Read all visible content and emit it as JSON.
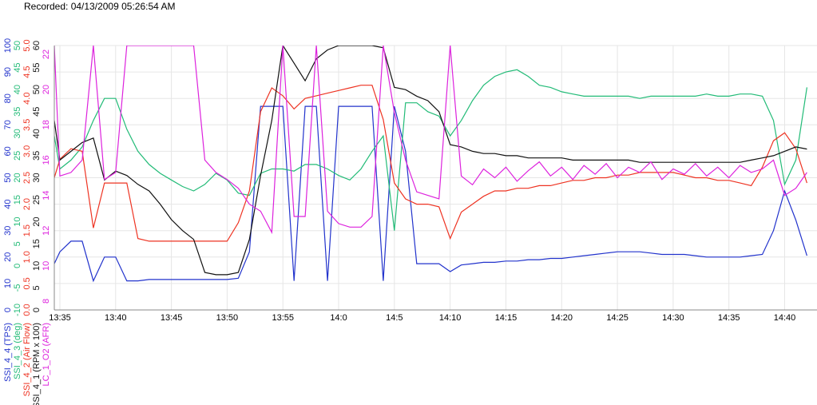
{
  "header": {
    "recorded": "Recorded: 04/13/2009 05:26:54 AM"
  },
  "chart_data": {
    "type": "line",
    "x": [
      814.5,
      815,
      816,
      817,
      818,
      819,
      820,
      821,
      822,
      823,
      824,
      825,
      826,
      827,
      828,
      829,
      830,
      831,
      832,
      833,
      834,
      835,
      836,
      837,
      838,
      839,
      840,
      841,
      842,
      843,
      844,
      845,
      846,
      847,
      848,
      849,
      850,
      851,
      852,
      853,
      854,
      855,
      856,
      857,
      858,
      859,
      860,
      861,
      862,
      863,
      864,
      865,
      866,
      867,
      868,
      869,
      870,
      871,
      872,
      873,
      874,
      875,
      876,
      877,
      878,
      879,
      880,
      881,
      882
    ],
    "xlim": [
      814.5,
      882.9
    ],
    "xticks": [
      {
        "value": 815,
        "label": "13:35"
      },
      {
        "value": 820,
        "label": "13:40"
      },
      {
        "value": 825,
        "label": "13:45"
      },
      {
        "value": 830,
        "label": "13:50"
      },
      {
        "value": 835,
        "label": "13:55"
      },
      {
        "value": 840,
        "label": "14:0"
      },
      {
        "value": 845,
        "label": "14:5"
      },
      {
        "value": 850,
        "label": "14:10"
      },
      {
        "value": 855,
        "label": "14:15"
      },
      {
        "value": 860,
        "label": "14:20"
      },
      {
        "value": 865,
        "label": "14:25"
      },
      {
        "value": 870,
        "label": "14:30"
      },
      {
        "value": 875,
        "label": "14:35"
      },
      {
        "value": 880,
        "label": "14:40"
      }
    ],
    "grid": true,
    "series": [
      {
        "name": "SSI_4_4 (TPS)",
        "color": "#2233cc",
        "ylim": [
          0,
          100
        ],
        "yticks": [
          0,
          10,
          20,
          30,
          40,
          50,
          60,
          70,
          80,
          90,
          100
        ],
        "values": [
          17.5,
          22,
          26,
          26,
          11,
          20,
          20,
          11,
          11,
          11.5,
          11.5,
          11.5,
          11.5,
          11.5,
          11.5,
          11.5,
          11.5,
          12,
          22,
          77,
          77,
          77,
          11,
          77,
          77,
          11,
          77,
          77,
          77,
          77,
          11,
          77,
          60,
          17.5,
          17.5,
          17.5,
          14.5,
          17,
          17.5,
          18,
          18,
          18.5,
          18.5,
          19,
          19,
          19.5,
          19.5,
          20,
          20.5,
          21,
          21.5,
          22,
          22,
          22,
          21.5,
          21,
          21,
          21,
          20.5,
          20,
          20,
          20,
          20,
          20.5,
          21,
          30,
          45,
          34,
          20.5
        ]
      },
      {
        "name": "SSI_4_3 (deg)",
        "color": "#22bb77",
        "ylim": [
          -10,
          50
        ],
        "yticks": [
          -10,
          -5,
          0,
          5,
          10,
          15,
          20,
          25,
          30,
          35,
          40,
          45,
          50
        ],
        "values": [
          29.5,
          22,
          24,
          27,
          33,
          38,
          38,
          31,
          26,
          23,
          21,
          19.5,
          18,
          17,
          18.5,
          21,
          19.5,
          16.5,
          16,
          21,
          22,
          22,
          21.5,
          23,
          23,
          22,
          20.5,
          19.5,
          22,
          26,
          29.5,
          8,
          37,
          37,
          35,
          34,
          29.5,
          33,
          37.5,
          41,
          43,
          44,
          44.5,
          43,
          41,
          40.5,
          39.5,
          39,
          38.5,
          38.5,
          38.5,
          38.5,
          38.5,
          38,
          38.5,
          38.5,
          38.5,
          38.5,
          38.5,
          39,
          38.5,
          38.5,
          39,
          39,
          38.5,
          33,
          18.5,
          24,
          40.5
        ]
      },
      {
        "name": "SSI_4_2 (Air Flow)",
        "color": "#ee3322",
        "ylim": [
          0,
          5
        ],
        "yticks": [
          {
            "value": 0,
            "label": "0.0"
          },
          {
            "value": 0.5,
            "label": "0.5"
          },
          {
            "value": 1,
            "label": "1.0"
          },
          {
            "value": 1.5,
            "label": "1.5"
          },
          {
            "value": 2,
            "label": "2.0"
          },
          {
            "value": 2.5,
            "label": "2.5"
          },
          {
            "value": 3,
            "label": "3.0"
          },
          {
            "value": 3.5,
            "label": "3.5"
          },
          {
            "value": 4,
            "label": "4.0"
          },
          {
            "value": 4.5,
            "label": "4.5"
          },
          {
            "value": 5,
            "label": "5.0"
          }
        ],
        "values": [
          2.5,
          2.85,
          3.05,
          3.0,
          1.55,
          2.4,
          2.4,
          2.4,
          1.35,
          1.3,
          1.3,
          1.3,
          1.3,
          1.3,
          1.3,
          1.3,
          1.3,
          1.65,
          2.25,
          3.75,
          4.2,
          4.05,
          3.8,
          4.0,
          4.05,
          4.1,
          4.15,
          4.2,
          4.25,
          4.25,
          3.6,
          2.4,
          2.1,
          2.0,
          2.0,
          1.95,
          1.35,
          1.85,
          2.0,
          2.15,
          2.25,
          2.25,
          2.3,
          2.3,
          2.35,
          2.35,
          2.4,
          2.45,
          2.45,
          2.5,
          2.5,
          2.55,
          2.55,
          2.6,
          2.6,
          2.6,
          2.6,
          2.55,
          2.5,
          2.5,
          2.45,
          2.45,
          2.4,
          2.35,
          2.7,
          3.2,
          3.35,
          3.05,
          2.4
        ]
      },
      {
        "name": "SSI_4_1 (RPM x 100)",
        "color": "#111111",
        "ylim": [
          0,
          60
        ],
        "yticks": [
          0,
          5,
          10,
          15,
          20,
          25,
          30,
          35,
          40,
          45,
          50,
          55,
          60
        ],
        "values": [
          43,
          34,
          36,
          38,
          39,
          29.5,
          31.5,
          30.5,
          28.5,
          27,
          24,
          20.5,
          18,
          16,
          8.5,
          8,
          8,
          8.5,
          16,
          30.5,
          43,
          60,
          56,
          52,
          57,
          59,
          60,
          60,
          60,
          60,
          59.5,
          50.5,
          50,
          48.5,
          47.5,
          45,
          37.5,
          37,
          36,
          35.5,
          35.5,
          35,
          35,
          34.5,
          34.5,
          34.5,
          34.5,
          34,
          34,
          34,
          34,
          34,
          34,
          33.5,
          33.5,
          33.5,
          33.5,
          33.5,
          33.5,
          33.5,
          33.5,
          33.5,
          33.5,
          34,
          34.5,
          35,
          36,
          37,
          36.5
        ]
      },
      {
        "name": "LC_1_O2 (AFR)",
        "color": "#dd22dd",
        "ylim": [
          7.5,
          22.5
        ],
        "yticks": [
          8,
          10,
          12,
          14,
          16,
          18,
          20,
          22
        ],
        "values": [
          22.5,
          15.1,
          15.3,
          16,
          22.5,
          14.9,
          15.3,
          22.5,
          22.5,
          22.5,
          22.5,
          22.5,
          22.5,
          22.5,
          16,
          15.3,
          14.9,
          14.4,
          13.5,
          13.1,
          11.9,
          22.5,
          12.8,
          12.8,
          22.5,
          13.1,
          12.4,
          12.2,
          12.2,
          12.8,
          22.5,
          18.7,
          16,
          14.2,
          14,
          13.8,
          22.5,
          15.1,
          14.6,
          15.5,
          15,
          15.6,
          14.8,
          15.4,
          15.9,
          15.1,
          15.6,
          14.9,
          15.7,
          15.2,
          15.8,
          15,
          15.6,
          15.3,
          15.9,
          14.9,
          15.5,
          15.2,
          15.8,
          15.1,
          15.6,
          15,
          15.7,
          15.3,
          15.5,
          16,
          14,
          14.4,
          15.3
        ]
      }
    ]
  }
}
